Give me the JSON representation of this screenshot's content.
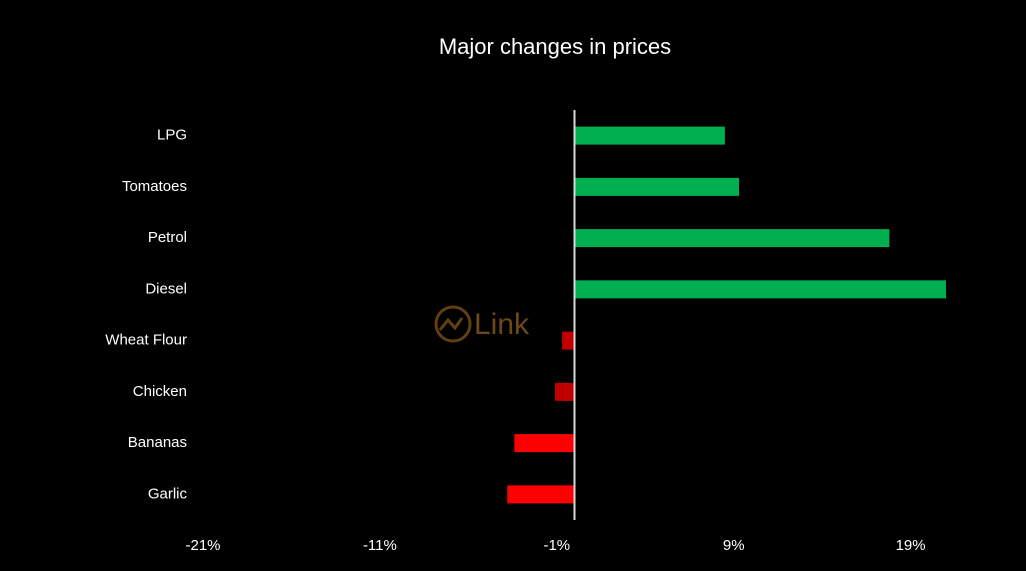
{
  "chart_data": {
    "type": "bar",
    "orientation": "horizontal",
    "title": "Major changes in prices",
    "watermark": "Link",
    "categories": [
      "LPG",
      "Tomatoes",
      "Petrol",
      "Diesel",
      "Wheat Flour",
      "Chicken",
      "Bananas",
      "Garlic"
    ],
    "values": [
      8.5,
      9.3,
      17.8,
      21.0,
      -0.7,
      -1.1,
      -3.4,
      -3.8
    ],
    "colors": [
      "#00b050",
      "#00b050",
      "#00b050",
      "#00b050",
      "#c00000",
      "#c00000",
      "#ff0000",
      "#ff0000"
    ],
    "xlim": [
      -21,
      21
    ],
    "xticks": [
      {
        "value": -21,
        "label": "-21%"
      },
      {
        "value": -11,
        "label": "-11%"
      },
      {
        "value": -1,
        "label": "-1%"
      },
      {
        "value": 9,
        "label": "9%"
      },
      {
        "value": 19,
        "label": "19%"
      }
    ],
    "grid": false
  }
}
